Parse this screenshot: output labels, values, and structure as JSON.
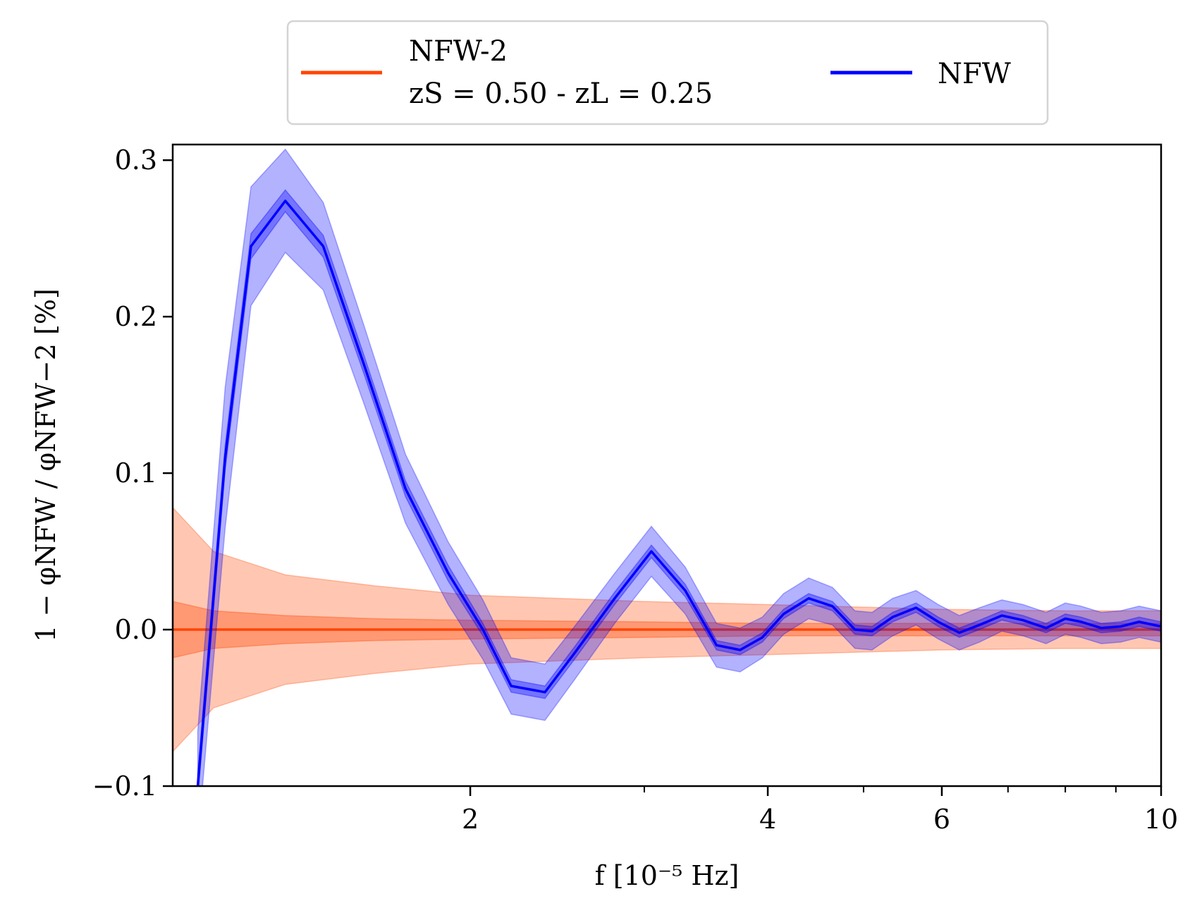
{
  "chart_data": {
    "type": "line",
    "xscale": "log",
    "xlim": [
      1.0,
      10.0
    ],
    "ylim": [
      -0.1,
      0.31
    ],
    "xlabel": "f  [10⁻⁵ Hz]",
    "ylabel": "1 − φNFW / φNFW−2  [%]",
    "x_ticks": [
      2,
      4,
      6,
      10
    ],
    "x_tick_labels": [
      "2",
      "4",
      "6",
      "10"
    ],
    "x_minor_ticks": [
      3,
      5,
      7,
      8,
      9
    ],
    "y_ticks": [
      -0.1,
      0.0,
      0.1,
      0.2,
      0.3
    ],
    "y_tick_labels": [
      "−0.1",
      "0.0",
      "0.1",
      "0.2",
      "0.3"
    ],
    "grid": false,
    "legend": {
      "placement": "top-center, above plot",
      "entries": [
        {
          "line1": "NFW-2",
          "line2": "zS = 0.50 - zL = 0.25",
          "color": "#ff4500"
        },
        {
          "line1": "NFW",
          "line2": "",
          "color": "#0000ff"
        }
      ]
    },
    "series": [
      {
        "name": "NFW-2",
        "color": "#ff4500",
        "x": [
          1.0,
          1.1,
          1.3,
          1.6,
          2.0,
          3.0,
          4.0,
          6.0,
          8.0,
          10.0
        ],
        "y": [
          0,
          0,
          0,
          0,
          0,
          0,
          0,
          0,
          0,
          0
        ],
        "outer_band": [
          0.078,
          0.05,
          0.035,
          0.028,
          0.022,
          0.018,
          0.016,
          0.013,
          0.012,
          0.012
        ],
        "inner_band": [
          0.018,
          0.012,
          0.009,
          0.007,
          0.006,
          0.005,
          0.004,
          0.004,
          0.004,
          0.004
        ]
      },
      {
        "name": "NFW",
        "color": "#0000ff",
        "x": [
          1.06,
          1.13,
          1.2,
          1.3,
          1.42,
          1.56,
          1.72,
          1.9,
          2.06,
          2.2,
          2.38,
          2.55,
          2.8,
          3.05,
          3.3,
          3.55,
          3.75,
          3.95,
          4.15,
          4.4,
          4.65,
          4.9,
          5.1,
          5.35,
          5.65,
          5.95,
          6.25,
          6.55,
          6.9,
          7.25,
          7.65,
          8.0,
          8.3,
          8.7,
          9.1,
          9.5,
          10.0
        ],
        "y": [
          -0.1,
          0.11,
          0.245,
          0.274,
          0.245,
          0.17,
          0.09,
          0.036,
          0.0,
          -0.036,
          -0.04,
          -0.015,
          0.02,
          0.05,
          0.025,
          -0.01,
          -0.013,
          -0.005,
          0.01,
          0.02,
          0.015,
          0.0,
          -0.001,
          0.008,
          0.014,
          0.005,
          -0.002,
          0.003,
          0.009,
          0.006,
          0.001,
          0.007,
          0.005,
          0.001,
          0.002,
          0.005,
          0.002
        ],
        "outer_band": [
          0.035,
          0.045,
          0.038,
          0.033,
          0.028,
          0.025,
          0.022,
          0.02,
          0.019,
          0.018,
          0.018,
          0.017,
          0.016,
          0.016,
          0.015,
          0.014,
          0.014,
          0.013,
          0.013,
          0.013,
          0.012,
          0.012,
          0.012,
          0.012,
          0.011,
          0.011,
          0.011,
          0.011,
          0.01,
          0.01,
          0.01,
          0.01,
          0.01,
          0.01,
          0.01,
          0.01,
          0.01
        ],
        "inner_band": [
          0.008,
          0.008,
          0.008,
          0.007,
          0.007,
          0.006,
          0.005,
          0.005,
          0.004,
          0.004,
          0.004,
          0.004,
          0.004,
          0.004,
          0.004,
          0.003,
          0.003,
          0.003,
          0.003,
          0.003,
          0.003,
          0.003,
          0.003,
          0.003,
          0.003,
          0.003,
          0.003,
          0.003,
          0.003,
          0.003,
          0.003,
          0.003,
          0.003,
          0.003,
          0.003,
          0.003,
          0.003
        ]
      }
    ]
  }
}
